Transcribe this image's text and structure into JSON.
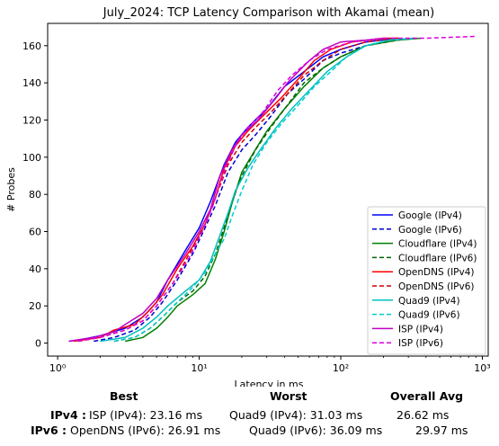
{
  "chart_data": {
    "type": "line",
    "title": "July_2024: TCP Latency Comparison with Akamai (mean)",
    "xlabel": "Latency in ms",
    "ylabel": "# Probes",
    "xscale": "log",
    "xlim": [
      0.85,
      1100
    ],
    "ylim": [
      -7,
      172
    ],
    "xticks": [
      1,
      10,
      100,
      1000
    ],
    "xtick_labels": [
      "10⁰",
      "10¹",
      "10²",
      "10³"
    ],
    "yticks": [
      0,
      20,
      40,
      60,
      80,
      100,
      120,
      140,
      160
    ],
    "grid": false,
    "legend_position": "lower-right",
    "series": [
      {
        "name": "Google (IPv4)",
        "color": "#0000ff",
        "style": "solid",
        "points": [
          [
            1.2,
            1
          ],
          [
            1.5,
            2
          ],
          [
            2,
            4
          ],
          [
            3,
            8
          ],
          [
            4,
            14
          ],
          [
            5,
            22
          ],
          [
            6,
            34
          ],
          [
            8,
            50
          ],
          [
            10,
            62
          ],
          [
            12,
            76
          ],
          [
            15,
            96
          ],
          [
            18,
            108
          ],
          [
            22,
            116
          ],
          [
            30,
            126
          ],
          [
            40,
            138
          ],
          [
            55,
            146
          ],
          [
            75,
            154
          ],
          [
            100,
            158
          ],
          [
            150,
            162
          ],
          [
            250,
            164
          ]
        ]
      },
      {
        "name": "Google (IPv6)",
        "color": "#0000cc",
        "style": "dashed",
        "points": [
          [
            1.8,
            1
          ],
          [
            2.5,
            3
          ],
          [
            3.5,
            7
          ],
          [
            4.5,
            14
          ],
          [
            5.5,
            22
          ],
          [
            7,
            34
          ],
          [
            9,
            48
          ],
          [
            11,
            62
          ],
          [
            13,
            74
          ],
          [
            16,
            92
          ],
          [
            20,
            104
          ],
          [
            25,
            112
          ],
          [
            32,
            122
          ],
          [
            42,
            134
          ],
          [
            55,
            142
          ],
          [
            75,
            152
          ],
          [
            100,
            156
          ],
          [
            150,
            160
          ],
          [
            250,
            163
          ],
          [
            330,
            164
          ]
        ]
      },
      {
        "name": "Cloudflare (IPv4)",
        "color": "#008000",
        "style": "solid",
        "points": [
          [
            3,
            1
          ],
          [
            4,
            3
          ],
          [
            5,
            8
          ],
          [
            6,
            14
          ],
          [
            7,
            20
          ],
          [
            9,
            26
          ],
          [
            11,
            32
          ],
          [
            13,
            45
          ],
          [
            15,
            60
          ],
          [
            17,
            75
          ],
          [
            20,
            92
          ],
          [
            24,
            102
          ],
          [
            30,
            114
          ],
          [
            40,
            126
          ],
          [
            55,
            138
          ],
          [
            75,
            148
          ],
          [
            100,
            154
          ],
          [
            150,
            160
          ],
          [
            250,
            163
          ],
          [
            370,
            164
          ]
        ]
      },
      {
        "name": "Cloudflare (IPv6)",
        "color": "#006400",
        "style": "dashed",
        "points": [
          [
            2.5,
            1
          ],
          [
            3.5,
            3
          ],
          [
            4.5,
            8
          ],
          [
            5.5,
            14
          ],
          [
            7,
            22
          ],
          [
            9,
            28
          ],
          [
            11,
            36
          ],
          [
            13,
            48
          ],
          [
            15,
            62
          ],
          [
            17,
            76
          ],
          [
            20,
            90
          ],
          [
            25,
            104
          ],
          [
            32,
            116
          ],
          [
            42,
            128
          ],
          [
            55,
            140
          ],
          [
            75,
            148
          ],
          [
            100,
            154
          ],
          [
            150,
            160
          ],
          [
            250,
            163
          ],
          [
            350,
            164
          ]
        ]
      },
      {
        "name": "OpenDNS (IPv4)",
        "color": "#ff0000",
        "style": "solid",
        "points": [
          [
            1.3,
            1
          ],
          [
            2,
            3
          ],
          [
            2.5,
            7
          ],
          [
            3.5,
            10
          ],
          [
            4.5,
            18
          ],
          [
            5.5,
            26
          ],
          [
            7,
            40
          ],
          [
            9,
            52
          ],
          [
            11,
            64
          ],
          [
            13,
            78
          ],
          [
            15,
            94
          ],
          [
            18,
            106
          ],
          [
            22,
            114
          ],
          [
            28,
            122
          ],
          [
            38,
            132
          ],
          [
            50,
            142
          ],
          [
            65,
            152
          ],
          [
            85,
            158
          ],
          [
            120,
            162
          ],
          [
            200,
            164
          ],
          [
            260,
            164
          ]
        ]
      },
      {
        "name": "OpenDNS (IPv6)",
        "color": "#cc0000",
        "style": "dashed",
        "points": [
          [
            1.4,
            1
          ],
          [
            2,
            3
          ],
          [
            3,
            7
          ],
          [
            4,
            12
          ],
          [
            5,
            20
          ],
          [
            6.5,
            32
          ],
          [
            8.5,
            48
          ],
          [
            11,
            64
          ],
          [
            13,
            78
          ],
          [
            16,
            96
          ],
          [
            20,
            108
          ],
          [
            25,
            116
          ],
          [
            32,
            124
          ],
          [
            42,
            134
          ],
          [
            55,
            144
          ],
          [
            75,
            152
          ],
          [
            100,
            158
          ],
          [
            150,
            162
          ],
          [
            250,
            164
          ]
        ]
      },
      {
        "name": "Quad9 (IPv4)",
        "color": "#00bfbf",
        "style": "solid",
        "points": [
          [
            2,
            1
          ],
          [
            3,
            3
          ],
          [
            4,
            8
          ],
          [
            5,
            14
          ],
          [
            6,
            20
          ],
          [
            8,
            28
          ],
          [
            10,
            34
          ],
          [
            12,
            44
          ],
          [
            14,
            58
          ],
          [
            16,
            70
          ],
          [
            18,
            82
          ],
          [
            22,
            94
          ],
          [
            27,
            104
          ],
          [
            35,
            116
          ],
          [
            45,
            126
          ],
          [
            60,
            136
          ],
          [
            80,
            146
          ],
          [
            110,
            154
          ],
          [
            150,
            160
          ],
          [
            220,
            163
          ],
          [
            330,
            164
          ]
        ]
      },
      {
        "name": "Quad9 (IPv6)",
        "color": "#00cccc",
        "style": "dashed",
        "points": [
          [
            2.5,
            1
          ],
          [
            3.5,
            3
          ],
          [
            4.5,
            8
          ],
          [
            5.5,
            14
          ],
          [
            7,
            22
          ],
          [
            9,
            30
          ],
          [
            11,
            38
          ],
          [
            13,
            48
          ],
          [
            15,
            56
          ],
          [
            17,
            68
          ],
          [
            20,
            82
          ],
          [
            24,
            96
          ],
          [
            30,
            108
          ],
          [
            38,
            118
          ],
          [
            50,
            128
          ],
          [
            65,
            138
          ],
          [
            85,
            146
          ],
          [
            110,
            154
          ],
          [
            150,
            160
          ],
          [
            220,
            163
          ],
          [
            340,
            164
          ]
        ]
      },
      {
        "name": "ISP (IPv4)",
        "color": "#c000c0",
        "style": "solid",
        "points": [
          [
            1.2,
            1
          ],
          [
            1.8,
            3
          ],
          [
            2.5,
            6
          ],
          [
            3,
            10
          ],
          [
            4,
            16
          ],
          [
            5,
            24
          ],
          [
            6,
            34
          ],
          [
            8,
            48
          ],
          [
            10,
            60
          ],
          [
            12,
            72
          ],
          [
            14,
            90
          ],
          [
            17,
            104
          ],
          [
            20,
            112
          ],
          [
            26,
            120
          ],
          [
            35,
            132
          ],
          [
            42,
            140
          ],
          [
            50,
            146
          ],
          [
            60,
            152
          ],
          [
            75,
            158
          ],
          [
            100,
            162
          ],
          [
            150,
            163
          ],
          [
            200,
            164
          ]
        ]
      },
      {
        "name": "ISP (IPv6)",
        "color": "#dd00dd",
        "style": "dashed",
        "points": [
          [
            1.4,
            1
          ],
          [
            2,
            3
          ],
          [
            3,
            7
          ],
          [
            4,
            12
          ],
          [
            5,
            20
          ],
          [
            6.5,
            32
          ],
          [
            8.5,
            46
          ],
          [
            10.5,
            60
          ],
          [
            12.5,
            74
          ],
          [
            15,
            92
          ],
          [
            18,
            106
          ],
          [
            22,
            116
          ],
          [
            28,
            124
          ],
          [
            36,
            136
          ],
          [
            45,
            144
          ],
          [
            60,
            152
          ],
          [
            80,
            158
          ],
          [
            120,
            162
          ],
          [
            200,
            164
          ],
          [
            400,
            164
          ],
          [
            900,
            165
          ]
        ]
      }
    ]
  },
  "summary": {
    "headers": {
      "best": "Best",
      "worst": "Worst",
      "avg": "Overall Avg"
    },
    "ipv4": {
      "label": "IPv4 :",
      "best": "ISP (IPv4): 23.16 ms",
      "worst": "Quad9 (IPv4): 31.03 ms",
      "avg": "26.62 ms"
    },
    "ipv6": {
      "label": "IPv6 :",
      "best": "OpenDNS (IPv6): 26.91 ms",
      "worst": "Quad9 (IPv6): 36.09 ms",
      "avg": "29.97 ms"
    }
  }
}
